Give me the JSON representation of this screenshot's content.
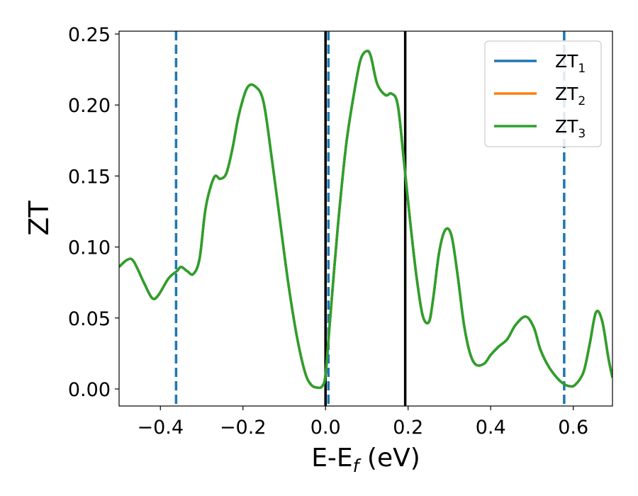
{
  "chart_data": {
    "type": "line",
    "xlabel": "E-E",
    "xlabel_sub": "f",
    "xlabel_unit": " (eV)",
    "ylabel": "ZT",
    "xlim": [
      -0.5,
      0.695
    ],
    "ylim": [
      -0.012,
      0.252
    ],
    "x_ticks": [
      -0.4,
      -0.2,
      0.0,
      0.2,
      0.4,
      0.6
    ],
    "x_tick_labels": [
      "−0.4",
      "−0.2",
      "0.0",
      "0.2",
      "0.4",
      "0.6"
    ],
    "y_ticks": [
      0.0,
      0.05,
      0.1,
      0.15,
      0.2,
      0.25
    ],
    "y_tick_labels": [
      "0.00",
      "0.05",
      "0.10",
      "0.15",
      "0.20",
      "0.25"
    ],
    "grid": false,
    "legend_position": "top-right",
    "colors": {
      "ZT1": "#1f77b4",
      "ZT2": "#ff7f0e",
      "ZT3": "#2ca02c",
      "vline_solid": "#000000",
      "vline_dashed": "#1f77b4"
    },
    "series": [
      {
        "name": "ZT",
        "sub": "1",
        "color": "#1f77b4"
      },
      {
        "name": "ZT",
        "sub": "2",
        "color": "#ff7f0e"
      },
      {
        "name": "ZT",
        "sub": "3",
        "color": "#2ca02c"
      }
    ],
    "x": [
      -0.5,
      -0.48,
      -0.465,
      -0.44,
      -0.42,
      -0.405,
      -0.38,
      -0.36,
      -0.35,
      -0.335,
      -0.32,
      -0.305,
      -0.29,
      -0.27,
      -0.255,
      -0.24,
      -0.225,
      -0.21,
      -0.19,
      -0.17,
      -0.15,
      -0.13,
      -0.11,
      -0.09,
      -0.07,
      -0.05,
      -0.035,
      -0.02,
      -0.008,
      0.0,
      0.01,
      0.03,
      0.05,
      0.07,
      0.085,
      0.1,
      0.11,
      0.125,
      0.145,
      0.16,
      0.175,
      0.19,
      0.205,
      0.22,
      0.235,
      0.25,
      0.26,
      0.275,
      0.29,
      0.305,
      0.32,
      0.335,
      0.35,
      0.365,
      0.385,
      0.4,
      0.42,
      0.44,
      0.46,
      0.485,
      0.505,
      0.52,
      0.54,
      0.56,
      0.575,
      0.59,
      0.605,
      0.625,
      0.64,
      0.655,
      0.67,
      0.685,
      0.695
    ],
    "y": [
      0.086,
      0.091,
      0.09,
      0.075,
      0.064,
      0.066,
      0.078,
      0.083,
      0.086,
      0.083,
      0.081,
      0.092,
      0.128,
      0.149,
      0.148,
      0.152,
      0.17,
      0.193,
      0.212,
      0.213,
      0.202,
      0.162,
      0.118,
      0.074,
      0.038,
      0.012,
      0.003,
      0.001,
      0.002,
      0.01,
      0.045,
      0.115,
      0.172,
      0.21,
      0.232,
      0.238,
      0.234,
      0.215,
      0.207,
      0.208,
      0.2,
      0.16,
      0.118,
      0.08,
      0.052,
      0.047,
      0.062,
      0.096,
      0.112,
      0.108,
      0.08,
      0.046,
      0.025,
      0.017,
      0.018,
      0.024,
      0.03,
      0.035,
      0.045,
      0.051,
      0.043,
      0.028,
      0.016,
      0.008,
      0.004,
      0.002,
      0.003,
      0.012,
      0.032,
      0.054,
      0.048,
      0.022,
      0.008
    ],
    "vlines_solid": [
      0.0,
      0.193
    ],
    "vlines_dashed": [
      -0.362,
      0.007,
      0.578
    ]
  }
}
